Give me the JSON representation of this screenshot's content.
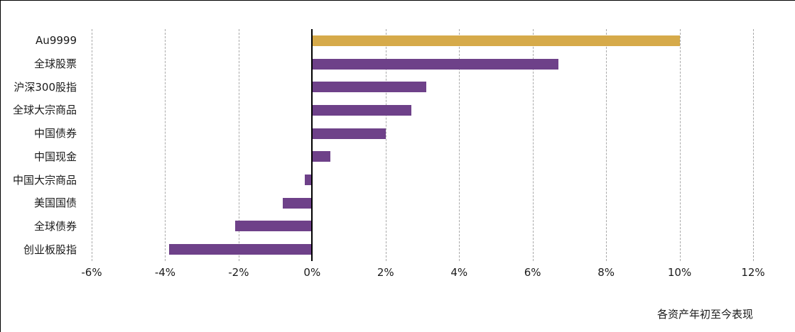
{
  "chart_data": {
    "type": "bar",
    "orientation": "horizontal",
    "categories": [
      "Au9999",
      "全球股票",
      "沪深300股指",
      "全球大宗商品",
      "中国债券",
      "中国现金",
      "中国大宗商品",
      "美国国债",
      "全球债券",
      "创业板股指"
    ],
    "values": [
      10.0,
      6.7,
      3.1,
      2.7,
      2.0,
      0.5,
      -0.2,
      -0.8,
      -2.1,
      -3.9
    ],
    "title": "",
    "xlabel": "",
    "ylabel": "",
    "xlim": [
      -6,
      12
    ],
    "x_tick_values": [
      -6,
      -4,
      -2,
      0,
      2,
      4,
      6,
      8,
      10,
      12
    ],
    "x_tick_labels": [
      "-6%",
      "-4%",
      "-2%",
      "0%",
      "2%",
      "4%",
      "6%",
      "8%",
      "10%",
      "12%"
    ],
    "grid": true,
    "legend": "none",
    "caption": "各资产年初至今表现",
    "highlight_category": "Au9999",
    "bar_color_highlight": "#d6aa4a",
    "bar_color_default": "#6e4189"
  },
  "frame": {
    "border_color": "#000000",
    "gridline_color": "#a9a9a9",
    "zero_axis_color": "#000000",
    "background": "#ffffff"
  }
}
